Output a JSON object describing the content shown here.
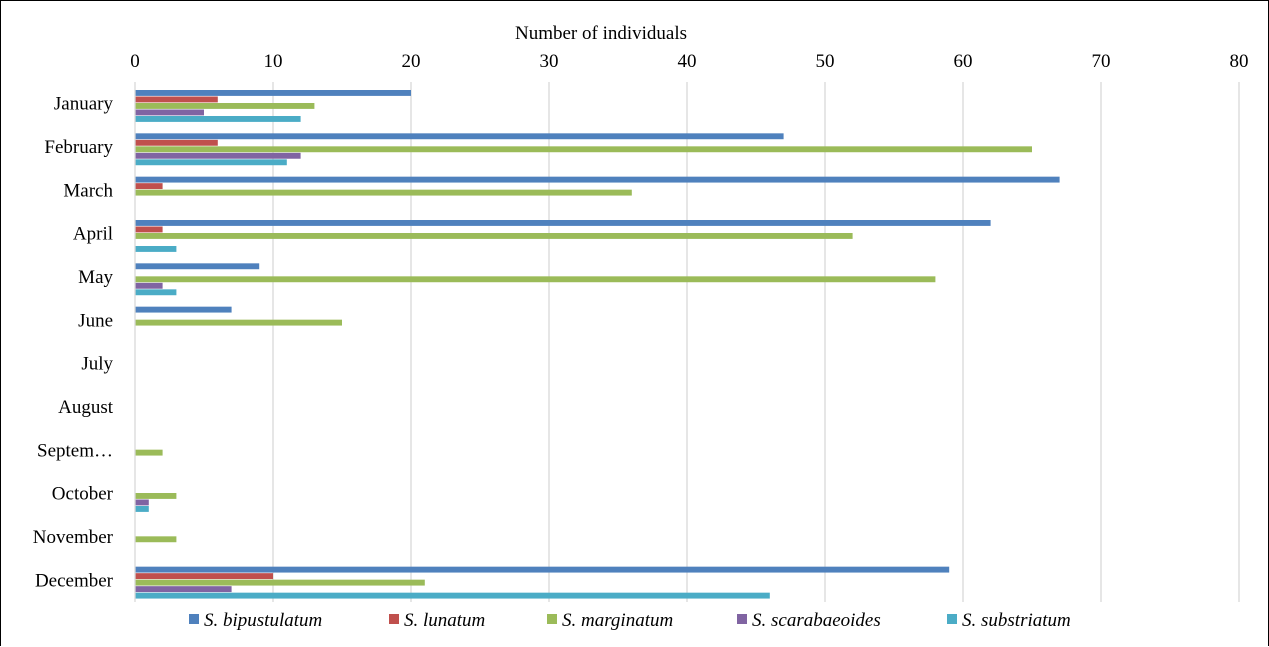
{
  "chart_data": {
    "type": "bar",
    "orientation": "horizontal",
    "title": "",
    "xlabel": "Number of individuals",
    "xaxis_position": "top",
    "xlim": [
      0,
      80
    ],
    "xticks": [
      0,
      10,
      20,
      30,
      40,
      50,
      60,
      70,
      80
    ],
    "grid": true,
    "legend_position": "bottom",
    "categories": [
      "January",
      "February",
      "March",
      "April",
      "May",
      "June",
      "July",
      "August",
      "Septem…",
      "October",
      "November",
      "December"
    ],
    "series": [
      {
        "name": "S. bipustulatum",
        "color": "#4F81BD",
        "values": [
          20,
          47,
          67,
          62,
          9,
          7,
          0,
          0,
          0,
          0,
          0,
          59
        ]
      },
      {
        "name": "S. lunatum",
        "color": "#C0504D",
        "values": [
          6,
          6,
          2,
          2,
          0,
          0,
          0,
          0,
          0,
          0,
          0,
          10
        ]
      },
      {
        "name": "S. marginatum",
        "color": "#9BBB59",
        "values": [
          13,
          65,
          36,
          52,
          58,
          15,
          0,
          0,
          2,
          3,
          3,
          21
        ]
      },
      {
        "name": "S. scarabaeoides",
        "color": "#8064A2",
        "values": [
          5,
          12,
          0,
          0,
          2,
          0,
          0,
          0,
          0,
          1,
          0,
          7
        ]
      },
      {
        "name": "S. substriatum",
        "color": "#4BACC6",
        "values": [
          12,
          11,
          0,
          3,
          3,
          0,
          0,
          0,
          0,
          1,
          0,
          46
        ]
      }
    ]
  }
}
